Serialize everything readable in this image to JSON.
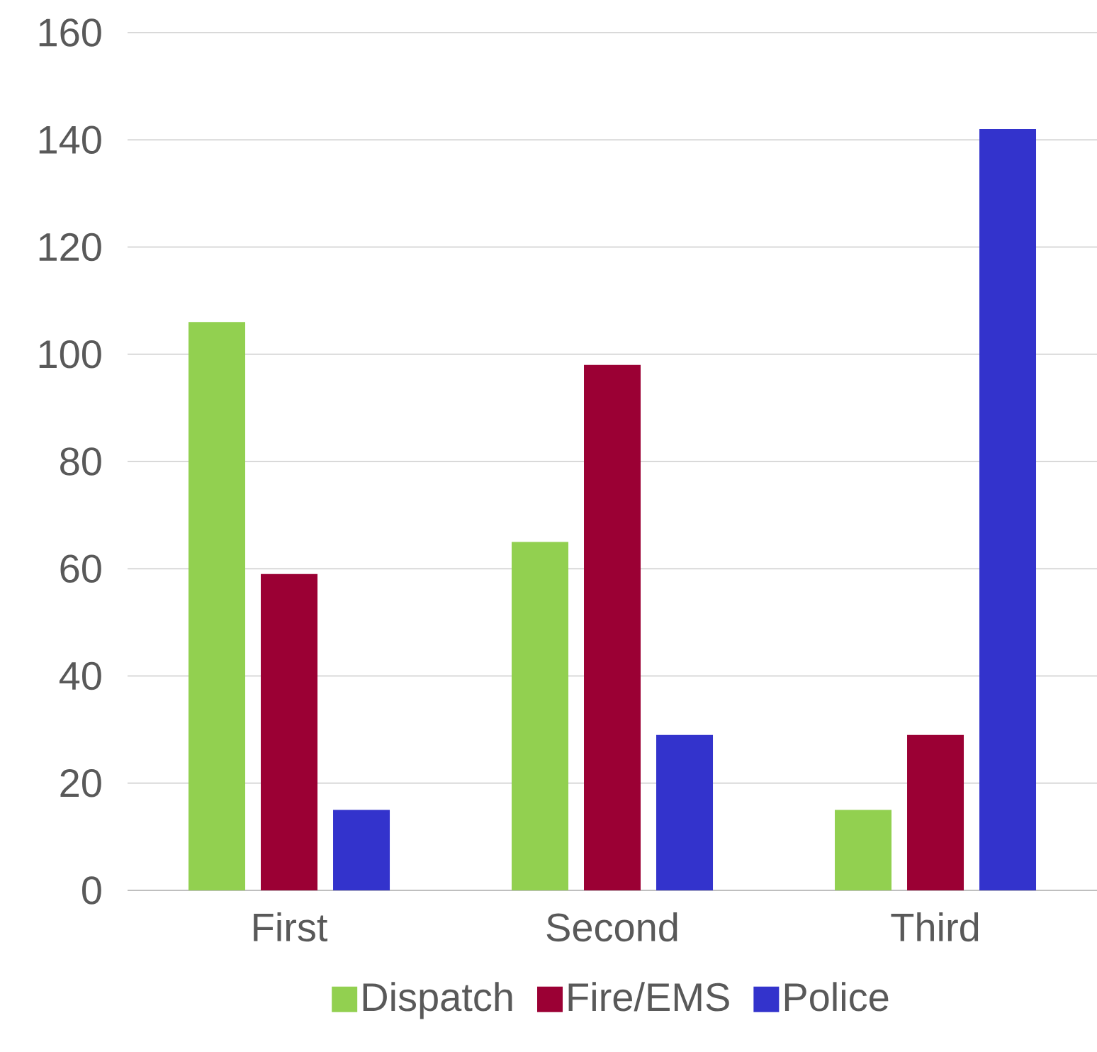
{
  "chart_data": {
    "type": "bar",
    "categories": [
      "First",
      "Second",
      "Third"
    ],
    "series": [
      {
        "name": "Dispatch",
        "color": "#92d050",
        "values": [
          106,
          65,
          15
        ]
      },
      {
        "name": "Fire/EMS",
        "color": "#9b0034",
        "values": [
          59,
          98,
          29
        ]
      },
      {
        "name": "Police",
        "color": "#3333cc",
        "values": [
          15,
          29,
          142
        ]
      }
    ],
    "ylim": [
      0,
      160
    ],
    "yticks": [
      0,
      20,
      40,
      60,
      80,
      100,
      120,
      140,
      160
    ],
    "grid": "y",
    "legend": "bottom"
  }
}
